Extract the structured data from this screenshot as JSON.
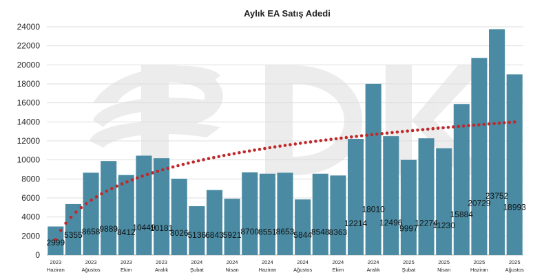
{
  "chart_data": {
    "type": "bar",
    "title": "Aylık EA Satış Adedi",
    "categories": [
      [
        "2023",
        "Haziran"
      ],
      [
        "",
        ""
      ],
      [
        "2023",
        "Ağustos"
      ],
      [
        "",
        ""
      ],
      [
        "2023",
        "Ekim"
      ],
      [
        "",
        ""
      ],
      [
        "2023",
        "Aralık"
      ],
      [
        "",
        ""
      ],
      [
        "2024",
        "Şubat"
      ],
      [
        "",
        ""
      ],
      [
        "2024",
        "Nisan"
      ],
      [
        "",
        ""
      ],
      [
        "2024",
        "Haziran"
      ],
      [
        "",
        ""
      ],
      [
        "2024",
        "Ağustos"
      ],
      [
        "",
        ""
      ],
      [
        "2024",
        "Ekim"
      ],
      [
        "",
        ""
      ],
      [
        "2024",
        "Aralık"
      ],
      [
        "",
        ""
      ],
      [
        "2025",
        "Şubat"
      ],
      [
        "",
        ""
      ],
      [
        "2025",
        "Nisan"
      ],
      [
        "",
        ""
      ],
      [
        "2025",
        "Haziran"
      ],
      [
        "",
        ""
      ],
      [
        "2025",
        "Ağustos"
      ]
    ],
    "values": [
      2999,
      5355,
      8658,
      9889,
      8412,
      10449,
      10181,
      8026,
      5136,
      6843,
      5921,
      8700,
      8551,
      8653,
      5844,
      8548,
      8363,
      12214,
      18010,
      12496,
      9997,
      12274,
      11230,
      15884,
      20729,
      23752,
      18993
    ],
    "label_side": [
      "below",
      "below",
      "below",
      "below",
      "below",
      "below",
      "below",
      "below",
      "below",
      "below",
      "below",
      "below",
      "below",
      "below",
      "below",
      "below",
      "below",
      "below",
      "below",
      "below",
      "below",
      "below",
      "below",
      "below",
      "below",
      "below",
      "below"
    ],
    "trendline": {
      "type": "logarithmic",
      "style": "dotted",
      "color": "#c0282a"
    },
    "ylim": [
      0,
      24000
    ],
    "yticks": [
      0,
      2000,
      4000,
      6000,
      8000,
      10000,
      12000,
      14000,
      16000,
      18000,
      20000,
      22000,
      24000
    ],
    "grid": true,
    "bar_color": "#4a8ba3",
    "watermark": "EPDK"
  }
}
